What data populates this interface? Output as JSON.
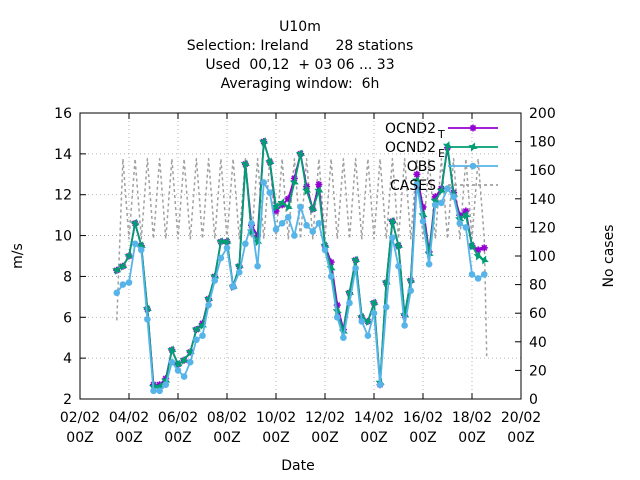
{
  "chart_data": {
    "type": "line",
    "title_lines": [
      "U10m",
      "Selection: Ireland      28 stations",
      "Used  00,12  + 03 06 ... 33",
      "Averaging window:  6h"
    ],
    "xlabel": "Date",
    "ylabel": "m/s",
    "y2label": "No cases",
    "ylim": [
      2,
      16
    ],
    "y2lim": [
      0,
      200
    ],
    "yticks": [
      2,
      4,
      6,
      8,
      10,
      12,
      14,
      16
    ],
    "y2ticks": [
      0,
      20,
      40,
      60,
      80,
      100,
      120,
      140,
      160,
      180,
      200
    ],
    "xlim": [
      0,
      18
    ],
    "xticks": [
      {
        "x": 0,
        "label": [
          "02/02",
          "00Z"
        ]
      },
      {
        "x": 2,
        "label": [
          "04/02",
          "00Z"
        ]
      },
      {
        "x": 4,
        "label": [
          "06/02",
          "00Z"
        ]
      },
      {
        "x": 6,
        "label": [
          "08/02",
          "00Z"
        ]
      },
      {
        "x": 8,
        "label": [
          "10/02",
          "00Z"
        ]
      },
      {
        "x": 10,
        "label": [
          "12/02",
          "00Z"
        ]
      },
      {
        "x": 12,
        "label": [
          "14/02",
          "00Z"
        ]
      },
      {
        "x": 14,
        "label": [
          "16/02",
          "00Z"
        ]
      },
      {
        "x": 16,
        "label": [
          "18/02",
          "00Z"
        ]
      },
      {
        "x": 18,
        "label": [
          "20/02",
          "00Z"
        ]
      }
    ],
    "grid": true,
    "legend_position": "top-right",
    "x": [
      1.5,
      1.75,
      2.0,
      2.25,
      2.5,
      2.75,
      3.0,
      3.25,
      3.5,
      3.75,
      4.0,
      4.25,
      4.5,
      4.75,
      5.0,
      5.25,
      5.5,
      5.75,
      6.0,
      6.25,
      6.5,
      6.75,
      7.0,
      7.25,
      7.5,
      7.75,
      8.0,
      8.25,
      8.5,
      8.75,
      9.0,
      9.25,
      9.5,
      9.75,
      10.0,
      10.25,
      10.5,
      10.75,
      11.0,
      11.25,
      11.5,
      11.75,
      12.0,
      12.25,
      12.5,
      12.75,
      13.0,
      13.25,
      13.5,
      13.75,
      14.0,
      14.25,
      14.5,
      14.75,
      15.0,
      15.25,
      15.5,
      15.75,
      16.0,
      16.25,
      16.5
    ],
    "series": [
      {
        "name": "OCND2_T",
        "legend_text": "OCND2",
        "legend_sub": "T",
        "color": "#9400d3",
        "marker": "cross",
        "axis": "y",
        "values": [
          8.3,
          8.5,
          9.0,
          10.6,
          9.5,
          6.4,
          2.7,
          2.7,
          3.0,
          4.4,
          3.7,
          3.9,
          4.3,
          5.4,
          5.7,
          6.9,
          8.0,
          9.7,
          9.7,
          7.5,
          8.5,
          13.5,
          10.5,
          10.0,
          14.6,
          13.6,
          11.2,
          11.5,
          11.8,
          12.8,
          14.0,
          12.4,
          11.3,
          12.5,
          9.5,
          8.7,
          6.6,
          5.4,
          7.2,
          8.8,
          6.0,
          5.8,
          6.7,
          2.7,
          7.7,
          10.7,
          9.5,
          6.1,
          7.8,
          13.0,
          11.4,
          9.2,
          11.9,
          12.3,
          14.3,
          12.1,
          11.0,
          11.2,
          9.5,
          9.3,
          9.4
        ]
      },
      {
        "name": "OCND2_E",
        "legend_text": "OCND2",
        "legend_sub": "E",
        "color": "#009e73",
        "marker": "star",
        "axis": "y",
        "values": [
          8.3,
          8.5,
          9.0,
          10.6,
          9.5,
          6.4,
          2.6,
          2.6,
          2.9,
          4.4,
          3.7,
          3.9,
          4.3,
          5.4,
          5.6,
          6.9,
          8.0,
          9.7,
          9.7,
          7.5,
          8.5,
          13.5,
          10.2,
          9.7,
          14.6,
          13.6,
          11.4,
          11.6,
          11.4,
          12.6,
          14.0,
          12.2,
          11.3,
          12.2,
          9.5,
          8.4,
          6.3,
          5.3,
          7.2,
          8.8,
          6.0,
          5.8,
          6.7,
          2.8,
          7.7,
          10.7,
          9.5,
          6.1,
          7.8,
          12.7,
          11.0,
          9.1,
          11.7,
          12.2,
          14.4,
          12.0,
          10.8,
          11.0,
          9.5,
          9.0,
          8.8
        ]
      },
      {
        "name": "OBS",
        "legend_text": "OBS",
        "legend_sub": "",
        "color": "#56b4e9",
        "marker": "circle",
        "axis": "y",
        "values": [
          7.2,
          7.6,
          7.7,
          9.6,
          9.3,
          5.9,
          2.4,
          2.4,
          2.7,
          3.8,
          3.4,
          3.1,
          3.8,
          4.9,
          5.1,
          6.6,
          7.8,
          8.9,
          9.4,
          7.5,
          8.2,
          9.6,
          10.6,
          8.5,
          12.6,
          12.1,
          10.3,
          10.6,
          10.9,
          10.0,
          11.4,
          10.5,
          10.2,
          10.6,
          9.3,
          8.0,
          6.0,
          5.0,
          6.7,
          8.4,
          5.8,
          5.1,
          6.2,
          2.7,
          6.5,
          9.9,
          8.5,
          5.6,
          7.3,
          12.5,
          10.7,
          8.6,
          11.5,
          11.6,
          12.3,
          11.9,
          10.6,
          10.4,
          8.1,
          7.9,
          8.1
        ]
      },
      {
        "name": "CASES",
        "legend_text": "CASES",
        "legend_sub": "",
        "color": "#a0a0a0",
        "marker": "none",
        "axis": "y2",
        "dash": true,
        "x": [
          1.5,
          1.75,
          2.0,
          2.25,
          2.5,
          2.75,
          3.0,
          3.25,
          3.5,
          3.75,
          4.0,
          4.25,
          4.5,
          4.75,
          5.0,
          5.25,
          5.5,
          5.75,
          6.0,
          6.25,
          6.5,
          6.75,
          7.0,
          7.25,
          7.5,
          7.75,
          8.0,
          8.25,
          8.5,
          8.75,
          9.0,
          9.25,
          9.5,
          9.75,
          10.0,
          10.25,
          10.5,
          10.75,
          11.0,
          11.25,
          11.5,
          11.75,
          12.0,
          12.25,
          12.5,
          12.75,
          13.0,
          13.25,
          13.5,
          13.75,
          14.0,
          14.25,
          14.5,
          14.75,
          15.0,
          15.25,
          15.5,
          15.75,
          16.0,
          16.25,
          16.5,
          16.6
        ],
        "values": [
          55,
          168,
          112,
          168,
          112,
          168,
          112,
          168,
          112,
          168,
          112,
          168,
          112,
          168,
          112,
          168,
          112,
          168,
          112,
          168,
          112,
          168,
          112,
          168,
          112,
          168,
          112,
          168,
          112,
          168,
          112,
          168,
          112,
          168,
          112,
          168,
          112,
          168,
          112,
          168,
          112,
          168,
          112,
          168,
          112,
          168,
          112,
          168,
          112,
          168,
          112,
          168,
          112,
          168,
          112,
          168,
          112,
          168,
          112,
          168,
          112,
          30
        ]
      }
    ]
  }
}
